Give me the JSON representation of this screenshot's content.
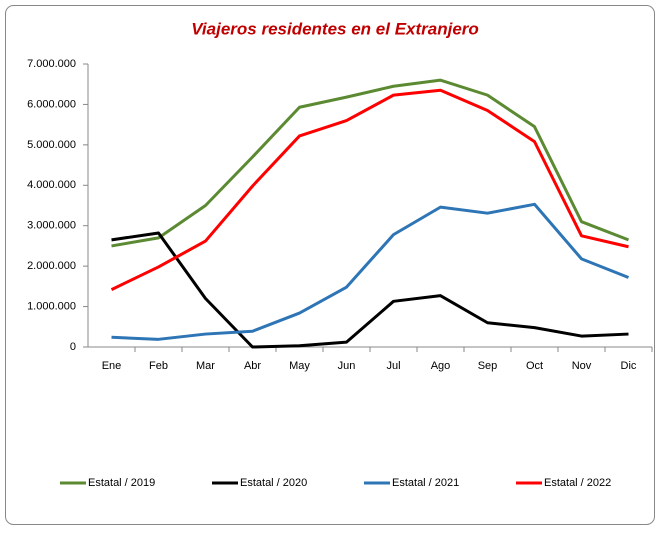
{
  "chart_data": {
    "type": "line",
    "title": "Viajeros residentes en el Extranjero",
    "categories": [
      "Ene",
      "Feb",
      "Mar",
      "Abr",
      "May",
      "Jun",
      "Jul",
      "Ago",
      "Sep",
      "Oct",
      "Nov",
      "Dic"
    ],
    "series": [
      {
        "name": "Estatal / 2019",
        "color": "#5b8a32",
        "values": [
          2500000,
          2700000,
          3500000,
          4700000,
          5930000,
          6180000,
          6450000,
          6600000,
          6230000,
          5450000,
          3100000,
          2650000
        ]
      },
      {
        "name": "Estatal / 2020",
        "color": "#000000",
        "values": [
          2650000,
          2820000,
          1200000,
          0,
          30000,
          120000,
          1130000,
          1270000,
          600000,
          480000,
          270000,
          320000
        ]
      },
      {
        "name": "Estatal / 2021",
        "color": "#2e75b6",
        "values": [
          240000,
          190000,
          320000,
          390000,
          840000,
          1480000,
          2780000,
          3460000,
          3310000,
          3530000,
          2180000,
          1720000
        ]
      },
      {
        "name": "Estatal / 2022",
        "color": "#ff0000",
        "values": [
          1420000,
          1980000,
          2620000,
          3980000,
          5220000,
          5600000,
          6230000,
          6350000,
          5850000,
          5080000,
          2750000,
          2480000
        ]
      }
    ],
    "ylim": [
      0,
      7000000
    ],
    "yticks": [
      0,
      {
        "value": 1000000,
        "label": "1.000.000"
      },
      {
        "value": 2000000,
        "label": "2.000.000"
      },
      {
        "value": 3000000,
        "label": "3.000.000"
      },
      {
        "value": 4000000,
        "label": "4.000.000"
      },
      {
        "value": 5000000,
        "label": "5.000.000"
      },
      {
        "value": 6000000,
        "label": "6.000.000"
      },
      {
        "value": 7000000,
        "label": "7.000.000"
      }
    ],
    "grid": false,
    "legend": "bottom"
  }
}
